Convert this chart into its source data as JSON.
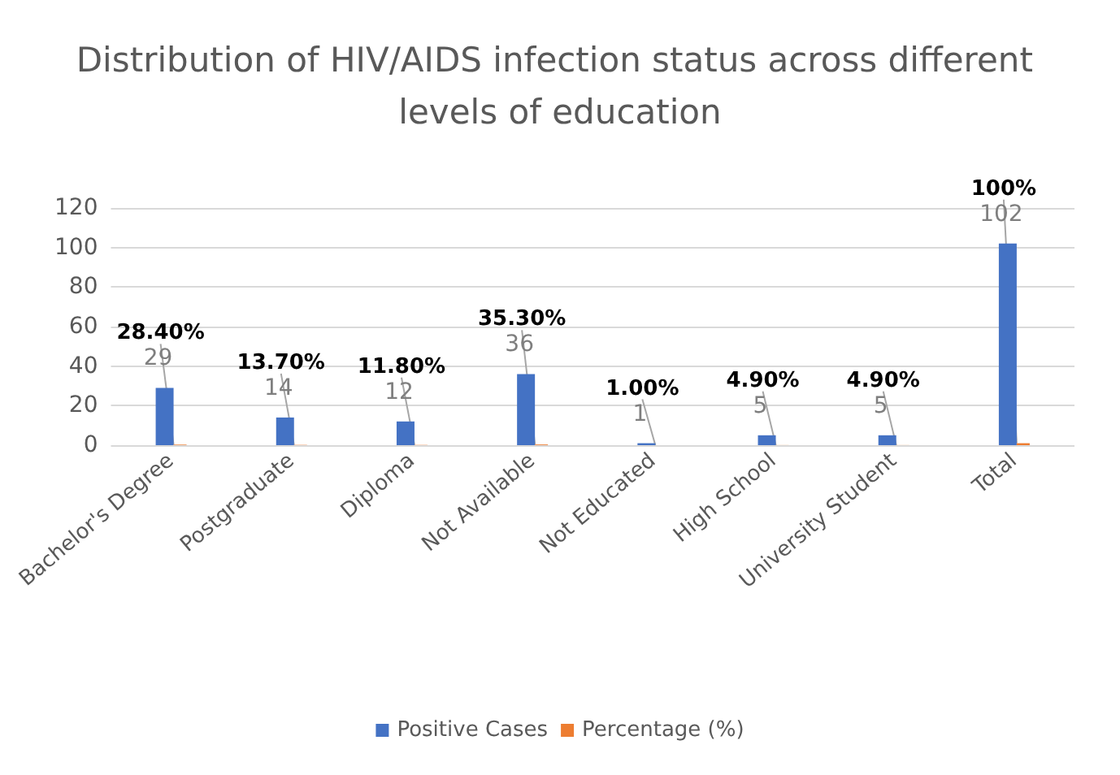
{
  "chart_data": {
    "type": "bar",
    "title": "Distribution of HIV/AIDS infection status across different levels of education",
    "categories": [
      "Bachelor's Degree",
      "Postgraduate",
      "Diploma",
      "Not Available",
      "Not Educated",
      "High School",
      "University Student",
      "Total"
    ],
    "series": [
      {
        "name": "Positive Cases",
        "color": "#4472c4",
        "values": [
          29,
          14,
          12,
          36,
          1,
          5,
          5,
          102
        ],
        "value_labels": [
          "29",
          "14",
          "12",
          "36",
          "1",
          "5",
          "5",
          "102"
        ]
      },
      {
        "name": "Percentage (%)",
        "color": "#ed7d31",
        "values": [
          0.284,
          0.137,
          0.118,
          0.353,
          0.01,
          0.049,
          0.049,
          1
        ],
        "value_labels": [
          "28.40%",
          "13.70%",
          "11.80%",
          "35.30%",
          "1.00%",
          "4.90%",
          "4.90%",
          "100%"
        ]
      }
    ],
    "ylim": [
      0,
      120
    ],
    "yticks": [
      0,
      20,
      40,
      60,
      80,
      100,
      120
    ],
    "grid": "y",
    "legend": "bottom"
  }
}
